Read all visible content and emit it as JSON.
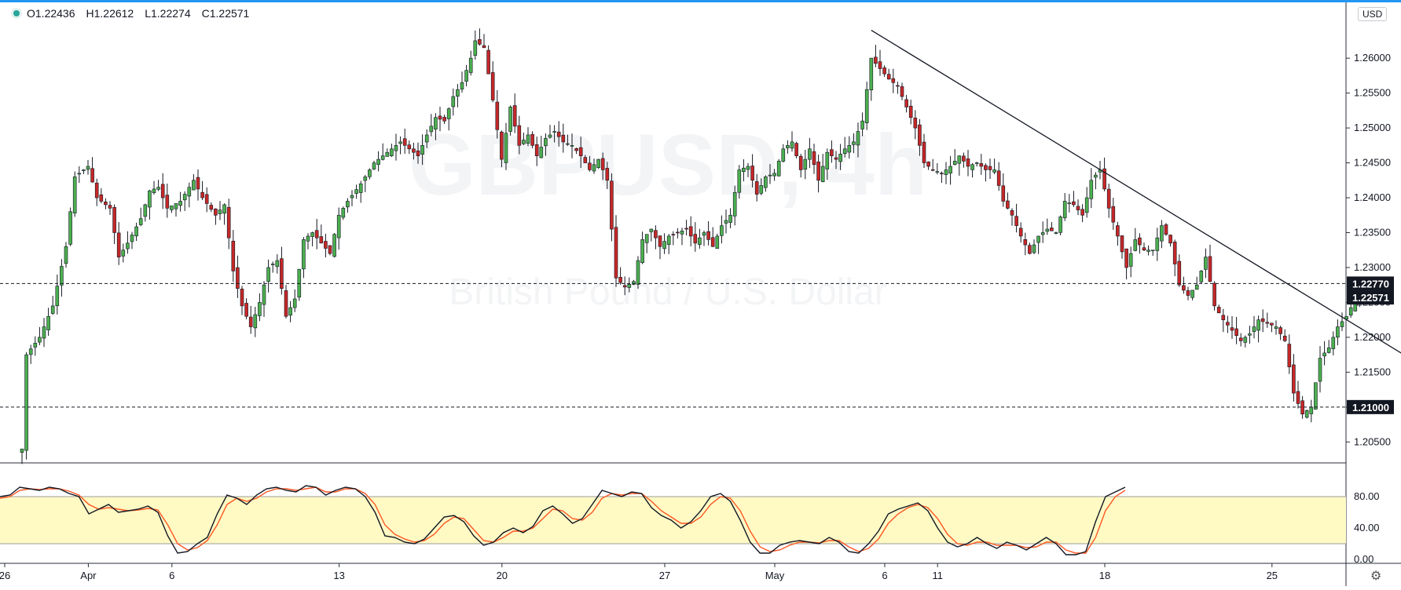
{
  "legend": {
    "open": "O1.22436",
    "high": "H1.22612",
    "low": "L1.22274",
    "close": "C1.22571"
  },
  "currency_label": "USD",
  "watermark": {
    "symbol": "GBPUSD, 4h",
    "description": "British Pound / U.S. Dollar"
  },
  "colors": {
    "up": "#26a69a",
    "down": "#ef5350",
    "upBody": "#4caf50",
    "downBody": "#c62828",
    "stochK": "#131722",
    "stochD": "#ff5722",
    "band": "#fff9c4"
  },
  "chart_data": {
    "type": "candlestick",
    "price_axis": {
      "min": 1.202,
      "max": 1.268,
      "ticks": [
        "1.20500",
        "1.21000",
        "1.21500",
        "1.22000",
        "1.22500",
        "1.23000",
        "1.23500",
        "1.24000",
        "1.24500",
        "1.25000",
        "1.25500",
        "1.26000"
      ],
      "tick_values": [
        1.205,
        1.21,
        1.215,
        1.22,
        1.225,
        1.23,
        1.235,
        1.24,
        1.245,
        1.25,
        1.255,
        1.26
      ]
    },
    "x_axis_labels": [
      "26",
      "Apr",
      "6",
      "13",
      "20",
      "27",
      "May",
      "6",
      "11",
      "18",
      "25"
    ],
    "x_axis_label_index": [
      0,
      19,
      38,
      76,
      113,
      150,
      175,
      200,
      212,
      250,
      288
    ],
    "candle_count": 270,
    "price_labels": [
      {
        "value": 1.2277,
        "text": "1.22770",
        "style": "dashed"
      },
      {
        "value": 1.22571,
        "text": "1.22571",
        "style": "last"
      },
      {
        "value": 1.21,
        "text": "1.21000",
        "style": "dashed"
      }
    ],
    "trendline": {
      "from": {
        "index": 193,
        "price": 1.264
      },
      "to": {
        "index": 325,
        "price": 1.2133
      }
    },
    "price_path": [
      [
        0,
        1.204
      ],
      [
        1,
        1.2175
      ],
      [
        4,
        1.22
      ],
      [
        7,
        1.2245
      ],
      [
        10,
        1.233
      ],
      [
        12,
        1.243
      ],
      [
        15,
        1.2445
      ],
      [
        17,
        1.24
      ],
      [
        20,
        1.2385
      ],
      [
        22,
        1.2315
      ],
      [
        24,
        1.2335
      ],
      [
        27,
        1.237
      ],
      [
        29,
        1.241
      ],
      [
        31,
        1.2415
      ],
      [
        33,
        1.2385
      ],
      [
        36,
        1.2395
      ],
      [
        39,
        1.2425
      ],
      [
        41,
        1.24
      ],
      [
        44,
        1.2375
      ],
      [
        46,
        1.239
      ],
      [
        48,
        1.2295
      ],
      [
        50,
        1.2245
      ],
      [
        52,
        1.2215
      ],
      [
        54,
        1.225
      ],
      [
        56,
        1.23
      ],
      [
        58,
        1.231
      ],
      [
        60,
        1.223
      ],
      [
        62,
        1.2255
      ],
      [
        64,
        1.234
      ],
      [
        66,
        1.235
      ],
      [
        68,
        1.2335
      ],
      [
        70,
        1.232
      ],
      [
        72,
        1.2375
      ],
      [
        74,
        1.2395
      ],
      [
        77,
        1.242
      ],
      [
        80,
        1.245
      ],
      [
        83,
        1.2465
      ],
      [
        86,
        1.248
      ],
      [
        88,
        1.247
      ],
      [
        90,
        1.246
      ],
      [
        92,
        1.249
      ],
      [
        94,
        1.2515
      ],
      [
        96,
        1.251
      ],
      [
        98,
        1.2545
      ],
      [
        100,
        1.2565
      ],
      [
        102,
        1.26
      ],
      [
        103,
        1.2625
      ],
      [
        105,
        1.2615
      ],
      [
        107,
        1.254
      ],
      [
        109,
        1.2455
      ],
      [
        111,
        1.253
      ],
      [
        113,
        1.2475
      ],
      [
        115,
        1.249
      ],
      [
        117,
        1.246
      ],
      [
        119,
        1.2485
      ],
      [
        121,
        1.2495
      ],
      [
        123,
        1.248
      ],
      [
        125,
        1.2475
      ],
      [
        127,
        1.246
      ],
      [
        129,
        1.244
      ],
      [
        131,
        1.2455
      ],
      [
        133,
        1.2425
      ],
      [
        135,
        1.2285
      ],
      [
        137,
        1.2272
      ],
      [
        139,
        1.228
      ],
      [
        141,
        1.234
      ],
      [
        143,
        1.2355
      ],
      [
        145,
        1.233
      ],
      [
        147,
        1.2345
      ],
      [
        149,
        1.235
      ],
      [
        151,
        1.2355
      ],
      [
        153,
        1.2335
      ],
      [
        155,
        1.235
      ],
      [
        157,
        1.233
      ],
      [
        159,
        1.236
      ],
      [
        161,
        1.2375
      ],
      [
        163,
        1.244
      ],
      [
        165,
        1.2445
      ],
      [
        167,
        1.2405
      ],
      [
        169,
        1.243
      ],
      [
        171,
        1.2435
      ],
      [
        173,
        1.247
      ],
      [
        175,
        1.248
      ],
      [
        177,
        1.244
      ],
      [
        179,
        1.247
      ],
      [
        181,
        1.2425
      ],
      [
        183,
        1.2465
      ],
      [
        185,
        1.2455
      ],
      [
        187,
        1.247
      ],
      [
        189,
        1.248
      ],
      [
        191,
        1.251
      ],
      [
        193,
        1.26
      ],
      [
        195,
        1.2585
      ],
      [
        197,
        1.257
      ],
      [
        199,
        1.256
      ],
      [
        201,
        1.253
      ],
      [
        203,
        1.25
      ],
      [
        205,
        1.245
      ],
      [
        207,
        1.244
      ],
      [
        209,
        1.2435
      ],
      [
        211,
        1.2445
      ],
      [
        213,
        1.246
      ],
      [
        215,
        1.2445
      ],
      [
        217,
        1.245
      ],
      [
        219,
        1.244
      ],
      [
        221,
        1.244
      ],
      [
        223,
        1.2395
      ],
      [
        225,
        1.2375
      ],
      [
        227,
        1.2345
      ],
      [
        229,
        1.232
      ],
      [
        231,
        1.2345
      ],
      [
        233,
        1.2355
      ],
      [
        235,
        1.235
      ],
      [
        237,
        1.2395
      ],
      [
        239,
        1.239
      ],
      [
        241,
        1.2375
      ],
      [
        243,
        1.2425
      ],
      [
        245,
        1.244
      ],
      [
        247,
        1.2385
      ],
      [
        249,
        1.2345
      ],
      [
        251,
        1.23
      ],
      [
        253,
        1.234
      ],
      [
        255,
        1.2325
      ],
      [
        257,
        1.2325
      ],
      [
        259,
        1.236
      ],
      [
        261,
        1.2335
      ],
      [
        263,
        1.2275
      ],
      [
        265,
        1.226
      ],
      [
        267,
        1.2275
      ],
      [
        269,
        1.2315
      ],
      [
        271,
        1.2245
      ],
      [
        273,
        1.2225
      ],
      [
        275,
        1.221
      ],
      [
        277,
        1.2195
      ],
      [
        279,
        1.2205
      ],
      [
        281,
        1.2225
      ],
      [
        283,
        1.222
      ],
      [
        285,
        1.2215
      ],
      [
        287,
        1.2195
      ],
      [
        289,
        1.212
      ],
      [
        291,
        1.209
      ],
      [
        293,
        1.21
      ],
      [
        295,
        1.217
      ],
      [
        297,
        1.2185
      ],
      [
        299,
        1.2215
      ],
      [
        301,
        1.223
      ],
      [
        303,
        1.2255
      ],
      [
        305,
        1.2257
      ]
    ],
    "stochastic": {
      "levels": [
        80,
        20
      ],
      "axis_ticks": [
        "80.00",
        "40.00",
        "0.00"
      ],
      "axis_tick_values": [
        80,
        40,
        0
      ],
      "k_path": [
        [
          0,
          80
        ],
        [
          2,
          82
        ],
        [
          4,
          92
        ],
        [
          6,
          90
        ],
        [
          8,
          88
        ],
        [
          10,
          92
        ],
        [
          12,
          90
        ],
        [
          14,
          84
        ],
        [
          16,
          80
        ],
        [
          18,
          58
        ],
        [
          20,
          64
        ],
        [
          22,
          70
        ],
        [
          24,
          60
        ],
        [
          26,
          62
        ],
        [
          28,
          64
        ],
        [
          30,
          68
        ],
        [
          32,
          60
        ],
        [
          34,
          30
        ],
        [
          36,
          8
        ],
        [
          38,
          10
        ],
        [
          40,
          20
        ],
        [
          42,
          28
        ],
        [
          44,
          58
        ],
        [
          46,
          82
        ],
        [
          48,
          78
        ],
        [
          50,
          70
        ],
        [
          52,
          82
        ],
        [
          54,
          90
        ],
        [
          56,
          92
        ],
        [
          58,
          88
        ],
        [
          60,
          86
        ],
        [
          62,
          94
        ],
        [
          64,
          92
        ],
        [
          66,
          82
        ],
        [
          68,
          88
        ],
        [
          70,
          92
        ],
        [
          72,
          90
        ],
        [
          74,
          80
        ],
        [
          76,
          60
        ],
        [
          78,
          30
        ],
        [
          80,
          28
        ],
        [
          82,
          22
        ],
        [
          84,
          20
        ],
        [
          86,
          26
        ],
        [
          88,
          40
        ],
        [
          90,
          54
        ],
        [
          92,
          56
        ],
        [
          94,
          48
        ],
        [
          96,
          30
        ],
        [
          98,
          18
        ],
        [
          100,
          22
        ],
        [
          102,
          34
        ],
        [
          104,
          40
        ],
        [
          106,
          34
        ],
        [
          108,
          42
        ],
        [
          110,
          62
        ],
        [
          112,
          68
        ],
        [
          114,
          58
        ],
        [
          116,
          46
        ],
        [
          118,
          52
        ],
        [
          120,
          70
        ],
        [
          122,
          88
        ],
        [
          124,
          84
        ],
        [
          126,
          80
        ],
        [
          128,
          86
        ],
        [
          130,
          84
        ],
        [
          132,
          66
        ],
        [
          134,
          56
        ],
        [
          136,
          50
        ],
        [
          138,
          40
        ],
        [
          140,
          48
        ],
        [
          142,
          62
        ],
        [
          144,
          80
        ],
        [
          146,
          84
        ],
        [
          148,
          74
        ],
        [
          150,
          50
        ],
        [
          152,
          22
        ],
        [
          154,
          8
        ],
        [
          156,
          8
        ],
        [
          158,
          18
        ],
        [
          160,
          22
        ],
        [
          162,
          24
        ],
        [
          164,
          22
        ],
        [
          166,
          20
        ],
        [
          168,
          28
        ],
        [
          170,
          22
        ],
        [
          172,
          10
        ],
        [
          174,
          8
        ],
        [
          176,
          20
        ],
        [
          178,
          36
        ],
        [
          180,
          58
        ],
        [
          182,
          64
        ],
        [
          184,
          68
        ],
        [
          186,
          72
        ],
        [
          188,
          62
        ],
        [
          190,
          40
        ],
        [
          192,
          22
        ],
        [
          194,
          16
        ],
        [
          196,
          20
        ],
        [
          198,
          28
        ],
        [
          200,
          20
        ],
        [
          202,
          14
        ],
        [
          204,
          22
        ],
        [
          206,
          18
        ],
        [
          208,
          12
        ],
        [
          210,
          20
        ],
        [
          212,
          28
        ],
        [
          214,
          20
        ],
        [
          216,
          6
        ],
        [
          218,
          6
        ],
        [
          220,
          10
        ],
        [
          222,
          48
        ],
        [
          224,
          80
        ],
        [
          226,
          86
        ],
        [
          228,
          92
        ]
      ],
      "d_path": [
        [
          0,
          78
        ],
        [
          2,
          80
        ],
        [
          4,
          88
        ],
        [
          6,
          90
        ],
        [
          8,
          89
        ],
        [
          10,
          90
        ],
        [
          12,
          90
        ],
        [
          14,
          87
        ],
        [
          16,
          82
        ],
        [
          18,
          70
        ],
        [
          20,
          64
        ],
        [
          22,
          66
        ],
        [
          24,
          64
        ],
        [
          26,
          62
        ],
        [
          28,
          63
        ],
        [
          30,
          65
        ],
        [
          32,
          63
        ],
        [
          34,
          44
        ],
        [
          36,
          20
        ],
        [
          38,
          12
        ],
        [
          40,
          15
        ],
        [
          42,
          24
        ],
        [
          44,
          44
        ],
        [
          46,
          70
        ],
        [
          48,
          78
        ],
        [
          50,
          74
        ],
        [
          52,
          78
        ],
        [
          54,
          86
        ],
        [
          56,
          90
        ],
        [
          58,
          90
        ],
        [
          60,
          88
        ],
        [
          62,
          90
        ],
        [
          64,
          92
        ],
        [
          66,
          86
        ],
        [
          68,
          86
        ],
        [
          70,
          90
        ],
        [
          72,
          90
        ],
        [
          74,
          84
        ],
        [
          76,
          70
        ],
        [
          78,
          44
        ],
        [
          80,
          32
        ],
        [
          82,
          26
        ],
        [
          84,
          22
        ],
        [
          86,
          24
        ],
        [
          88,
          32
        ],
        [
          90,
          46
        ],
        [
          92,
          54
        ],
        [
          94,
          52
        ],
        [
          96,
          38
        ],
        [
          98,
          24
        ],
        [
          100,
          22
        ],
        [
          102,
          28
        ],
        [
          104,
          36
        ],
        [
          106,
          36
        ],
        [
          108,
          40
        ],
        [
          110,
          52
        ],
        [
          112,
          64
        ],
        [
          114,
          62
        ],
        [
          116,
          52
        ],
        [
          118,
          50
        ],
        [
          120,
          60
        ],
        [
          122,
          78
        ],
        [
          124,
          84
        ],
        [
          126,
          82
        ],
        [
          128,
          84
        ],
        [
          130,
          84
        ],
        [
          132,
          74
        ],
        [
          134,
          62
        ],
        [
          136,
          54
        ],
        [
          138,
          46
        ],
        [
          140,
          46
        ],
        [
          142,
          54
        ],
        [
          144,
          70
        ],
        [
          146,
          80
        ],
        [
          148,
          78
        ],
        [
          150,
          62
        ],
        [
          152,
          36
        ],
        [
          154,
          16
        ],
        [
          156,
          10
        ],
        [
          158,
          12
        ],
        [
          160,
          18
        ],
        [
          162,
          22
        ],
        [
          164,
          22
        ],
        [
          166,
          21
        ],
        [
          168,
          24
        ],
        [
          170,
          24
        ],
        [
          172,
          16
        ],
        [
          174,
          10
        ],
        [
          176,
          14
        ],
        [
          178,
          26
        ],
        [
          180,
          46
        ],
        [
          182,
          58
        ],
        [
          184,
          66
        ],
        [
          186,
          70
        ],
        [
          188,
          66
        ],
        [
          190,
          52
        ],
        [
          192,
          32
        ],
        [
          194,
          20
        ],
        [
          196,
          18
        ],
        [
          198,
          22
        ],
        [
          200,
          22
        ],
        [
          202,
          18
        ],
        [
          204,
          18
        ],
        [
          206,
          18
        ],
        [
          208,
          15
        ],
        [
          210,
          16
        ],
        [
          212,
          22
        ],
        [
          214,
          22
        ],
        [
          216,
          12
        ],
        [
          218,
          8
        ],
        [
          220,
          8
        ],
        [
          222,
          28
        ],
        [
          224,
          62
        ],
        [
          226,
          80
        ],
        [
          228,
          88
        ]
      ]
    }
  }
}
